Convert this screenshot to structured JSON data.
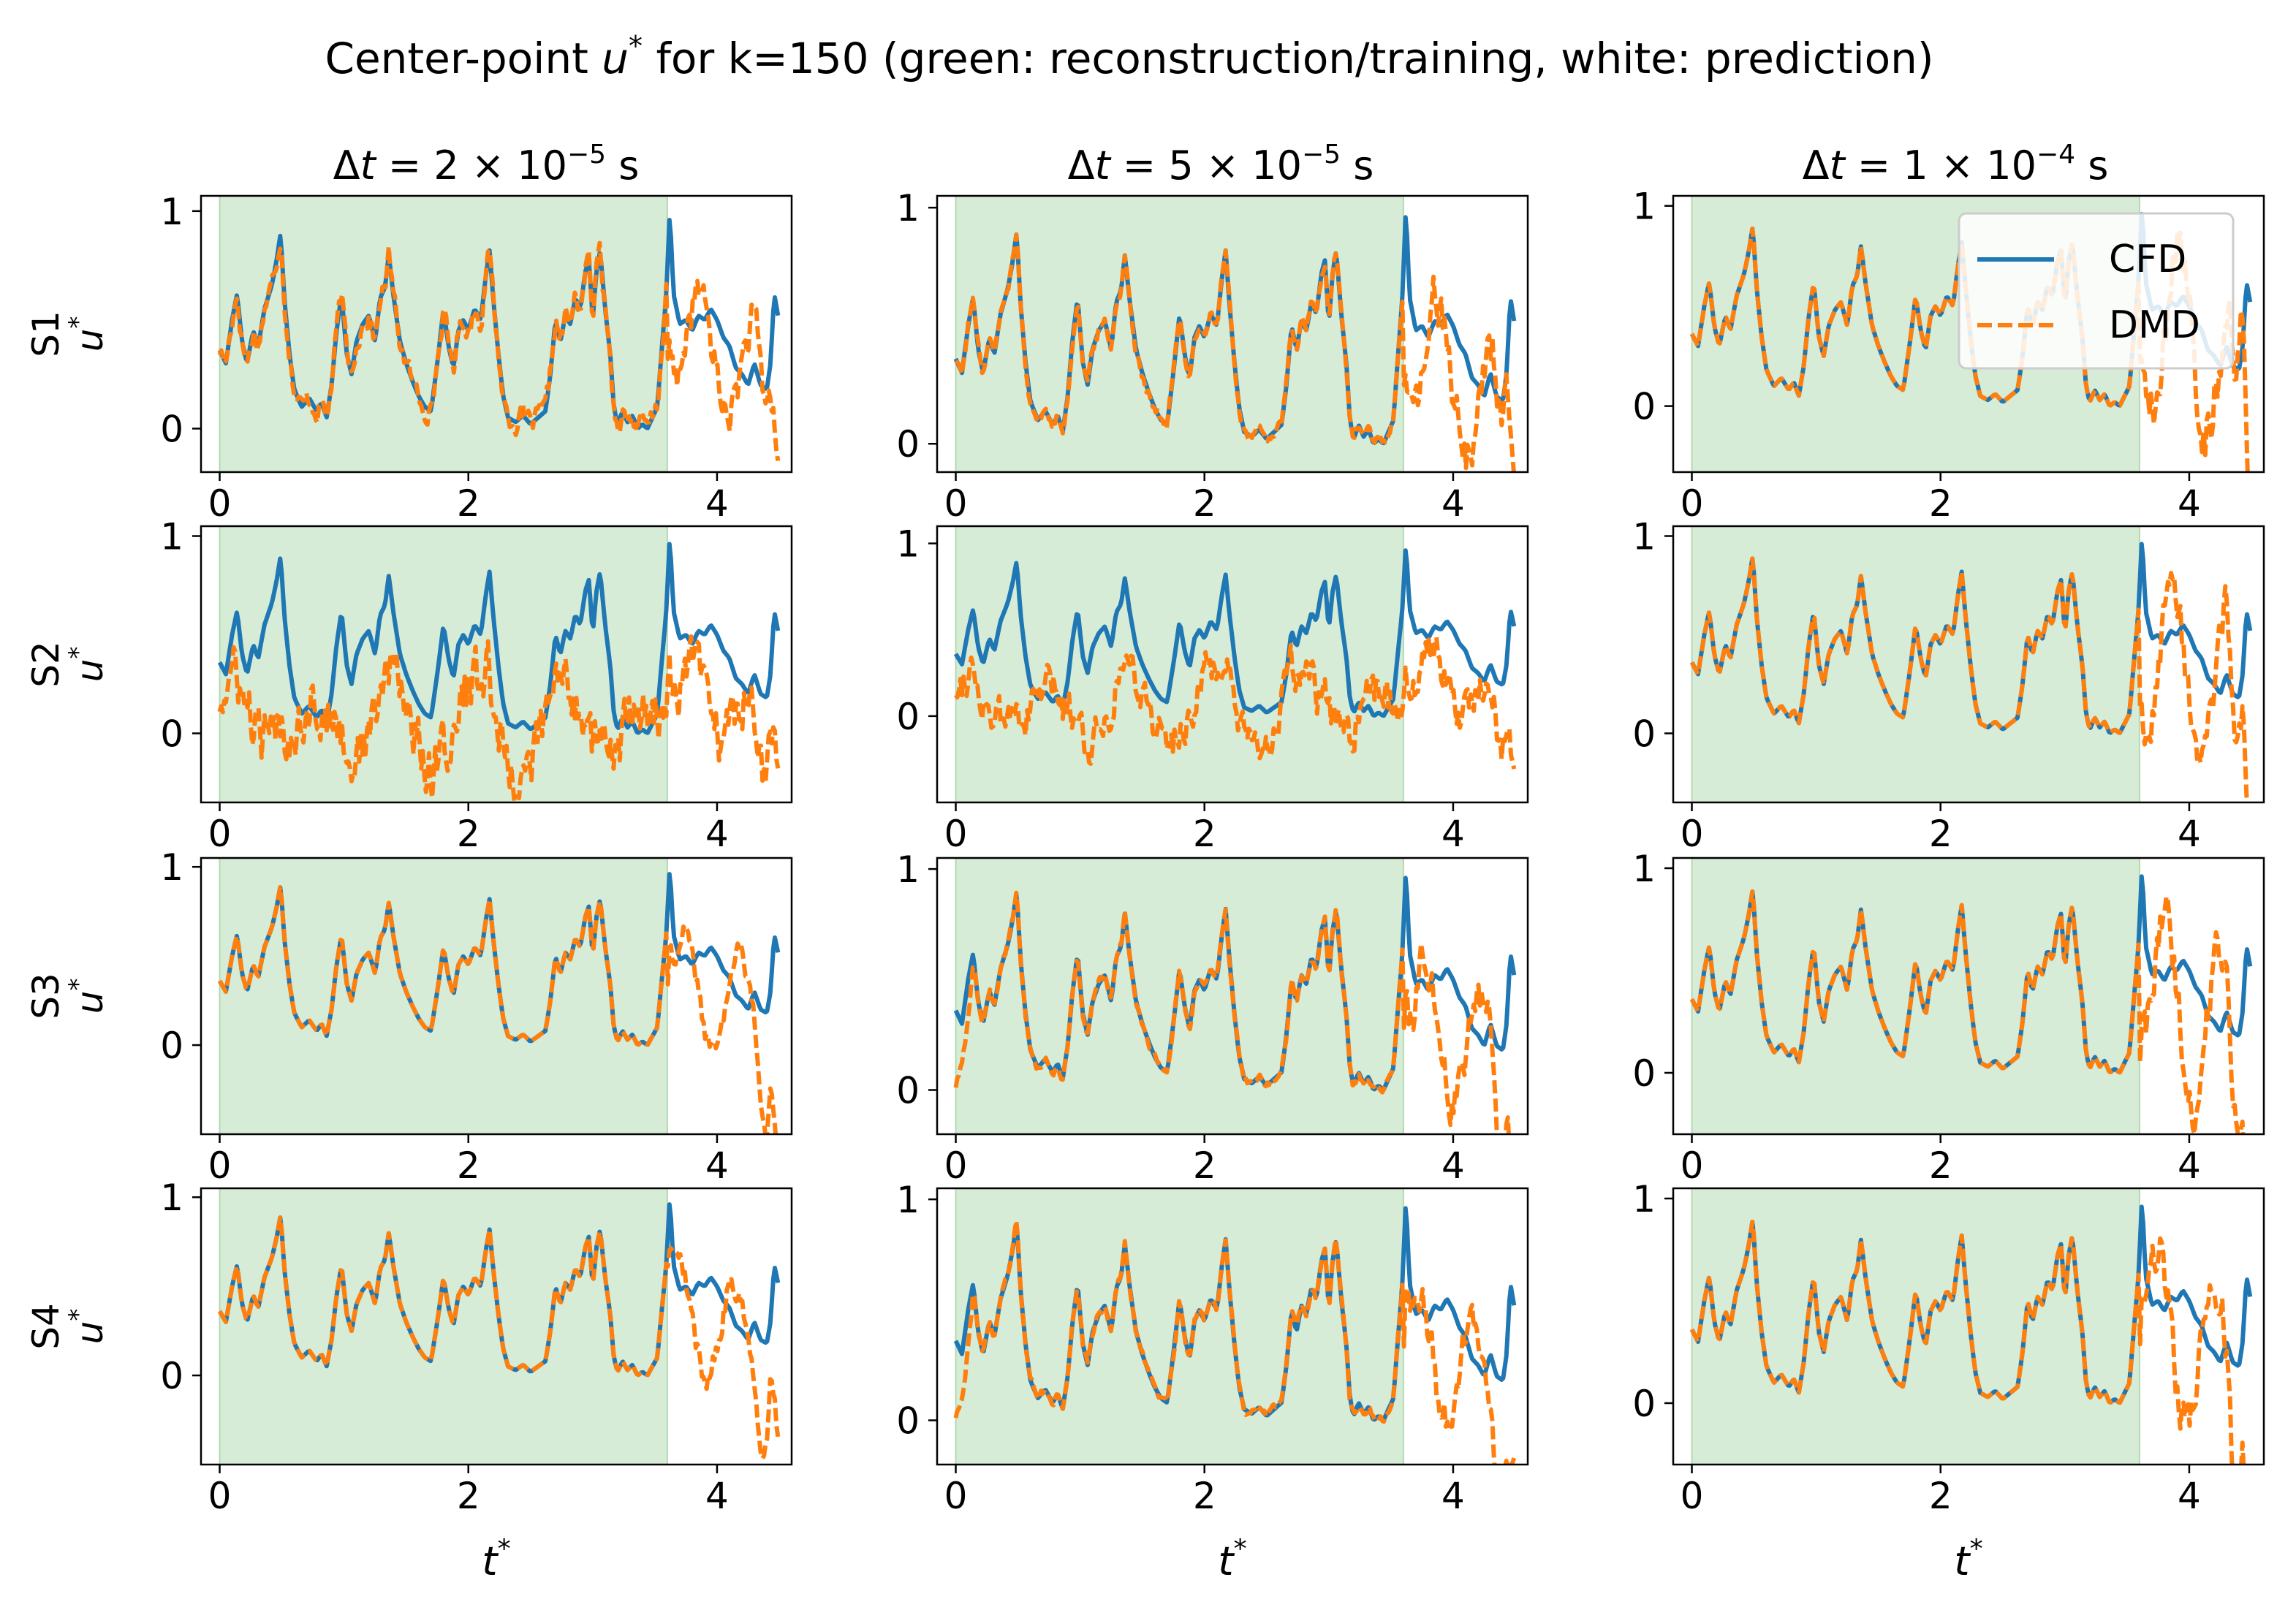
{
  "figure": {
    "suptitle_prefix": "Center-point ",
    "suptitle_var": "u",
    "suptitle_sup": "*",
    "suptitle_suffix": " for k=150 (green: reconstruction/training, white: prediction)"
  },
  "legend": {
    "cfd_label": "CFD",
    "dmd_label": "DMD"
  },
  "colors": {
    "cfd": "#1f77b4",
    "dmd": "#ff7f0e",
    "training_region": "#d6ecd6",
    "training_edge": "#b3d9b3"
  },
  "labels": {
    "xlabel_var": "t",
    "ylabel_var": "u",
    "star": "*"
  },
  "columns": [
    {
      "pre": "Δ",
      "var": "t",
      "mid": " = 2 × 10",
      "exp": "−5",
      "unit": " s"
    },
    {
      "pre": "Δ",
      "var": "t",
      "mid": " = 5 × 10",
      "exp": "−5",
      "unit": " s"
    },
    {
      "pre": "Δ",
      "var": "t",
      "mid": " = 1 × 10",
      "exp": "−4",
      "unit": " s"
    }
  ],
  "rows": [
    "S1",
    "S2",
    "S3",
    "S4"
  ],
  "chart_data": {
    "type": "line",
    "layout": "4x3 grid of subplots",
    "training_window": [
      0,
      3.6
    ],
    "xlim": [
      -0.15,
      4.6
    ],
    "x_ticks": [
      0,
      2,
      4
    ],
    "x_tick_labels": [
      "0",
      "2",
      "4"
    ],
    "y_ticks": [
      0,
      1
    ],
    "y_tick_labels": [
      "0",
      "1"
    ],
    "series_names": [
      "CFD",
      "DMD"
    ],
    "dmd_variants": [
      [
        {
          "ylim": [
            -0.2,
            1.07
          ],
          "train": {
            "type": "match",
            "noise": 0.04
          },
          "pred": {
            "scale": 0.7,
            "offset": 0.1,
            "drop": 0.35,
            "noise": 0.08
          }
        },
        {
          "ylim": [
            -0.12,
            1.05
          ],
          "train": {
            "type": "match",
            "noise": 0.02
          },
          "pred": {
            "scale": 0.8,
            "offset": 0.05,
            "drop": 0.45,
            "noise": 0.1
          }
        },
        {
          "ylim": [
            -0.33,
            1.05
          ],
          "train": {
            "type": "match",
            "noise": 0.0
          },
          "pred": {
            "scale": 1.1,
            "offset": 0.1,
            "drop": 0.9,
            "noise": 0.12
          }
        }
      ],
      [
        {
          "ylim": [
            -0.35,
            1.05
          ],
          "train": {
            "type": "poor",
            "noise": 0.12
          },
          "pred": {
            "scale": 0.5,
            "offset": -0.1,
            "drop": 0.3,
            "noise": 0.12
          }
        },
        {
          "ylim": [
            -0.5,
            1.1
          ],
          "train": {
            "type": "poor",
            "noise": 0.1
          },
          "pred": {
            "scale": 0.5,
            "offset": -0.05,
            "drop": 0.5,
            "noise": 0.1
          }
        },
        {
          "ylim": [
            -0.35,
            1.05
          ],
          "train": {
            "type": "match",
            "noise": 0.0
          },
          "pred": {
            "scale": 1.25,
            "offset": 0.05,
            "drop": 0.85,
            "noise": 0.1
          }
        }
      ],
      [
        {
          "ylim": [
            -0.5,
            1.05
          ],
          "train": {
            "type": "match",
            "noise": 0.0
          },
          "pred": {
            "scale": 1.0,
            "offset": 0.02,
            "drop": 0.75,
            "noise": 0.05
          }
        },
        {
          "ylim": [
            -0.2,
            1.05
          ],
          "train": {
            "type": "startdip",
            "noise": 0.03
          },
          "pred": {
            "scale": 0.9,
            "offset": 0.0,
            "drop": 0.45,
            "noise": 0.08
          }
        },
        {
          "ylim": [
            -0.3,
            1.05
          ],
          "train": {
            "type": "match",
            "noise": 0.0
          },
          "pred": {
            "scale": 1.25,
            "offset": 0.05,
            "drop": 0.85,
            "noise": 0.1
          }
        }
      ],
      [
        {
          "ylim": [
            -0.5,
            1.05
          ],
          "train": {
            "type": "match",
            "noise": 0.0
          },
          "pred": {
            "scale": 0.95,
            "offset": 0.02,
            "drop": 0.75,
            "noise": 0.06
          }
        },
        {
          "ylim": [
            -0.2,
            1.05
          ],
          "train": {
            "type": "startdip",
            "noise": 0.03
          },
          "pred": {
            "scale": 0.9,
            "offset": 0.0,
            "drop": 0.45,
            "noise": 0.08
          }
        },
        {
          "ylim": [
            -0.3,
            1.05
          ],
          "train": {
            "type": "match",
            "noise": 0.0
          },
          "pred": {
            "scale": 1.25,
            "offset": 0.05,
            "drop": 0.85,
            "noise": 0.1
          }
        }
      ]
    ],
    "cfd_key_points": [
      [
        0.0,
        0.36
      ],
      [
        0.05,
        0.3
      ],
      [
        0.1,
        0.5
      ],
      [
        0.14,
        0.62
      ],
      [
        0.18,
        0.4
      ],
      [
        0.22,
        0.3
      ],
      [
        0.27,
        0.45
      ],
      [
        0.31,
        0.38
      ],
      [
        0.36,
        0.55
      ],
      [
        0.42,
        0.66
      ],
      [
        0.46,
        0.78
      ],
      [
        0.49,
        0.9
      ],
      [
        0.52,
        0.6
      ],
      [
        0.56,
        0.35
      ],
      [
        0.6,
        0.18
      ],
      [
        0.66,
        0.1
      ],
      [
        0.72,
        0.14
      ],
      [
        0.78,
        0.08
      ],
      [
        0.82,
        0.12
      ],
      [
        0.86,
        0.05
      ],
      [
        0.9,
        0.2
      ],
      [
        0.94,
        0.45
      ],
      [
        0.98,
        0.62
      ],
      [
        1.02,
        0.35
      ],
      [
        1.06,
        0.25
      ],
      [
        1.1,
        0.4
      ],
      [
        1.15,
        0.48
      ],
      [
        1.2,
        0.52
      ],
      [
        1.25,
        0.4
      ],
      [
        1.29,
        0.6
      ],
      [
        1.33,
        0.65
      ],
      [
        1.36,
        0.8
      ],
      [
        1.4,
        0.6
      ],
      [
        1.45,
        0.4
      ],
      [
        1.5,
        0.3
      ],
      [
        1.55,
        0.22
      ],
      [
        1.6,
        0.15
      ],
      [
        1.65,
        0.1
      ],
      [
        1.7,
        0.08
      ],
      [
        1.75,
        0.3
      ],
      [
        1.8,
        0.55
      ],
      [
        1.84,
        0.38
      ],
      [
        1.88,
        0.28
      ],
      [
        1.92,
        0.45
      ],
      [
        1.96,
        0.5
      ],
      [
        2.0,
        0.45
      ],
      [
        2.05,
        0.55
      ],
      [
        2.1,
        0.5
      ],
      [
        2.14,
        0.7
      ],
      [
        2.17,
        0.82
      ],
      [
        2.2,
        0.6
      ],
      [
        2.24,
        0.35
      ],
      [
        2.28,
        0.15
      ],
      [
        2.32,
        0.05
      ],
      [
        2.38,
        0.03
      ],
      [
        2.44,
        0.06
      ],
      [
        2.5,
        0.02
      ],
      [
        2.56,
        0.05
      ],
      [
        2.62,
        0.08
      ],
      [
        2.66,
        0.25
      ],
      [
        2.7,
        0.5
      ],
      [
        2.74,
        0.4
      ],
      [
        2.78,
        0.52
      ],
      [
        2.82,
        0.48
      ],
      [
        2.86,
        0.6
      ],
      [
        2.9,
        0.55
      ],
      [
        2.94,
        0.72
      ],
      [
        2.97,
        0.78
      ],
      [
        3.0,
        0.5
      ],
      [
        3.03,
        0.72
      ],
      [
        3.06,
        0.82
      ],
      [
        3.1,
        0.55
      ],
      [
        3.14,
        0.35
      ],
      [
        3.17,
        0.1
      ],
      [
        3.2,
        0.02
      ],
      [
        3.24,
        0.08
      ],
      [
        3.28,
        0.03
      ],
      [
        3.32,
        0.06
      ],
      [
        3.36,
        0.0
      ],
      [
        3.4,
        0.02
      ],
      [
        3.44,
        0.0
      ],
      [
        3.48,
        0.05
      ],
      [
        3.52,
        0.1
      ],
      [
        3.56,
        0.4
      ],
      [
        3.59,
        0.6
      ],
      [
        3.62,
        1.0
      ],
      [
        3.65,
        0.62
      ],
      [
        3.7,
        0.48
      ],
      [
        3.75,
        0.5
      ],
      [
        3.8,
        0.45
      ],
      [
        3.85,
        0.52
      ],
      [
        3.9,
        0.5
      ],
      [
        3.95,
        0.55
      ],
      [
        4.0,
        0.5
      ],
      [
        4.05,
        0.42
      ],
      [
        4.1,
        0.38
      ],
      [
        4.15,
        0.28
      ],
      [
        4.2,
        0.25
      ],
      [
        4.25,
        0.2
      ],
      [
        4.3,
        0.3
      ],
      [
        4.35,
        0.2
      ],
      [
        4.4,
        0.18
      ],
      [
        4.43,
        0.3
      ],
      [
        4.46,
        0.62
      ],
      [
        4.49,
        0.52
      ]
    ]
  }
}
